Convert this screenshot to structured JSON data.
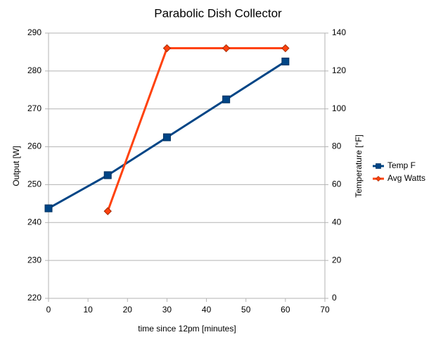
{
  "chart_data": {
    "type": "line",
    "title": "Parabolic Dish Collector",
    "x_label": "time since 12pm [minutes]",
    "y_label": "Output [W]",
    "y2_label": "Temperature [°F]",
    "x": [
      0,
      15,
      30,
      45,
      60
    ],
    "series": [
      {
        "name": "Temp F",
        "color": "#004586",
        "marker": "square",
        "axis": "y2",
        "values": [
          47.5,
          65,
          85,
          105,
          125
        ]
      },
      {
        "name": "Avg Watts",
        "color": "#ff420e",
        "marker": "diamond",
        "values": [
          null,
          243,
          286,
          286,
          286
        ]
      }
    ],
    "xlim": [
      0,
      70
    ],
    "xticks": [
      0,
      10,
      20,
      30,
      40,
      50,
      60,
      70
    ],
    "ylim": [
      220,
      290
    ],
    "yticks": [
      220,
      230,
      240,
      250,
      260,
      270,
      280,
      290
    ],
    "y2lim": [
      0,
      140
    ],
    "y2ticks": [
      0,
      20,
      40,
      60,
      80,
      100,
      120,
      140
    ],
    "grid": true,
    "legend": "right"
  }
}
